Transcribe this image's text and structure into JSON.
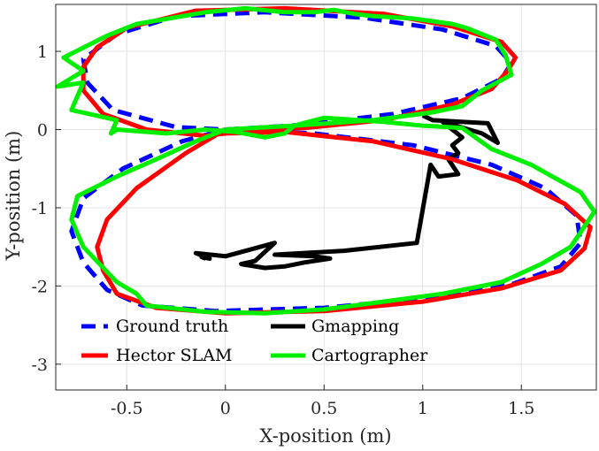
{
  "chart_data": {
    "type": "line",
    "title": "",
    "xlabel": "X-position (m)",
    "ylabel": "Y-position (m)",
    "xlim": [
      -0.86,
      1.88
    ],
    "ylim": [
      -3.33,
      1.6
    ],
    "xticks": [
      -0.5,
      0,
      0.5,
      1,
      1.5
    ],
    "xtick_labels": [
      "-0.5",
      "0",
      "0.5",
      "1",
      "1.5"
    ],
    "yticks": [
      -3,
      -2,
      -1,
      0,
      1
    ],
    "ytick_labels": [
      "-3",
      "-2",
      "-1",
      "0",
      "1"
    ],
    "grid": true,
    "legend_position": "bottom-left",
    "series": [
      {
        "name": "Ground truth",
        "color": "#0000ff",
        "style": "dashed",
        "points": [
          [
            0.0,
            0.0
          ],
          [
            0.4,
            0.06
          ],
          [
            0.85,
            0.2
          ],
          [
            1.2,
            0.4
          ],
          [
            1.4,
            0.65
          ],
          [
            1.45,
            0.85
          ],
          [
            1.37,
            1.07
          ],
          [
            1.1,
            1.28
          ],
          [
            0.7,
            1.43
          ],
          [
            0.2,
            1.5
          ],
          [
            -0.25,
            1.45
          ],
          [
            -0.55,
            1.22
          ],
          [
            -0.72,
            0.9
          ],
          [
            -0.7,
            0.6
          ],
          [
            -0.57,
            0.25
          ],
          [
            -0.25,
            0.03
          ],
          [
            0.0,
            0.0
          ],
          [
            0.45,
            -0.05
          ],
          [
            0.95,
            -0.2
          ],
          [
            1.35,
            -0.45
          ],
          [
            1.62,
            -0.75
          ],
          [
            1.78,
            -1.1
          ],
          [
            1.8,
            -1.45
          ],
          [
            1.7,
            -1.75
          ],
          [
            1.45,
            -1.98
          ],
          [
            1.05,
            -2.15
          ],
          [
            0.5,
            -2.28
          ],
          [
            -0.05,
            -2.32
          ],
          [
            -0.42,
            -2.25
          ],
          [
            -0.6,
            -2.05
          ],
          [
            -0.72,
            -1.7
          ],
          [
            -0.78,
            -1.3
          ],
          [
            -0.72,
            -0.88
          ],
          [
            -0.52,
            -0.5
          ],
          [
            -0.22,
            -0.15
          ],
          [
            0.0,
            0.0
          ]
        ]
      },
      {
        "name": "Gmapping",
        "color": "#000000",
        "style": "solid",
        "points": [
          [
            1.0,
            0.18
          ],
          [
            1.05,
            0.12
          ],
          [
            1.33,
            0.08
          ],
          [
            1.38,
            -0.17
          ],
          [
            1.3,
            -0.05
          ],
          [
            1.1,
            0.1
          ],
          [
            1.2,
            -0.1
          ],
          [
            1.15,
            -0.2
          ],
          [
            1.18,
            -0.3
          ],
          [
            1.13,
            -0.38
          ],
          [
            1.18,
            -0.57
          ],
          [
            1.08,
            -0.6
          ],
          [
            1.04,
            -0.45
          ],
          [
            0.97,
            -1.45
          ],
          [
            0.6,
            -1.55
          ],
          [
            0.25,
            -1.6
          ],
          [
            0.45,
            -1.62
          ],
          [
            0.53,
            -1.65
          ],
          [
            0.4,
            -1.7
          ],
          [
            0.3,
            -1.75
          ],
          [
            0.2,
            -1.77
          ],
          [
            0.08,
            -1.72
          ],
          [
            0.15,
            -1.68
          ],
          [
            0.25,
            -1.45
          ],
          [
            0.0,
            -1.62
          ],
          [
            -0.15,
            -1.58
          ],
          [
            -0.08,
            -1.65
          ],
          [
            -0.12,
            -1.63
          ],
          [
            -0.1,
            -1.65
          ]
        ]
      },
      {
        "name": "Hector SLAM",
        "color": "#ff0000",
        "style": "solid",
        "points": [
          [
            0.0,
            0.0
          ],
          [
            0.4,
            0.02
          ],
          [
            0.8,
            0.12
          ],
          [
            1.15,
            0.32
          ],
          [
            1.35,
            0.52
          ],
          [
            1.43,
            0.75
          ],
          [
            1.47,
            0.92
          ],
          [
            1.4,
            1.12
          ],
          [
            1.15,
            1.32
          ],
          [
            0.8,
            1.48
          ],
          [
            0.3,
            1.55
          ],
          [
            -0.15,
            1.52
          ],
          [
            -0.5,
            1.3
          ],
          [
            -0.65,
            1.05
          ],
          [
            -0.72,
            0.8
          ],
          [
            -0.72,
            0.5
          ],
          [
            -0.62,
            0.2
          ],
          [
            -0.4,
            0.0
          ],
          [
            -0.1,
            -0.08
          ],
          [
            0.0,
            -0.05
          ],
          [
            0.3,
            -0.03
          ],
          [
            0.75,
            -0.15
          ],
          [
            1.15,
            -0.38
          ],
          [
            1.48,
            -0.65
          ],
          [
            1.72,
            -0.95
          ],
          [
            1.85,
            -1.25
          ],
          [
            1.82,
            -1.52
          ],
          [
            1.7,
            -1.8
          ],
          [
            1.4,
            -2.03
          ],
          [
            1.0,
            -2.2
          ],
          [
            0.5,
            -2.32
          ],
          [
            0.0,
            -2.35
          ],
          [
            -0.35,
            -2.28
          ],
          [
            -0.55,
            -2.1
          ],
          [
            -0.62,
            -1.8
          ],
          [
            -0.65,
            -1.5
          ],
          [
            -0.6,
            -1.15
          ],
          [
            -0.45,
            -0.75
          ],
          [
            -0.2,
            -0.3
          ],
          [
            0.0,
            0.0
          ]
        ]
      },
      {
        "name": "Cartographer",
        "color": "#00ee00",
        "style": "solid",
        "points": [
          [
            0.0,
            0.0
          ],
          [
            0.35,
            0.05
          ],
          [
            0.75,
            0.12
          ],
          [
            1.05,
            0.22
          ],
          [
            1.2,
            0.3
          ],
          [
            1.3,
            0.5
          ],
          [
            1.45,
            0.7
          ],
          [
            1.42,
            0.95
          ],
          [
            1.37,
            1.15
          ],
          [
            1.22,
            1.3
          ],
          [
            1.15,
            1.35
          ],
          [
            0.95,
            1.42
          ],
          [
            0.75,
            1.45
          ],
          [
            0.65,
            1.48
          ],
          [
            0.55,
            1.53
          ],
          [
            0.45,
            1.5
          ],
          [
            0.3,
            1.5
          ],
          [
            0.1,
            1.55
          ],
          [
            -0.1,
            1.5
          ],
          [
            -0.45,
            1.35
          ],
          [
            -0.6,
            1.2
          ],
          [
            -0.82,
            0.92
          ],
          [
            -0.72,
            0.75
          ],
          [
            -0.85,
            0.55
          ],
          [
            -0.72,
            0.6
          ],
          [
            -0.78,
            0.25
          ],
          [
            -0.55,
            0.12
          ],
          [
            -0.58,
            -0.05
          ],
          [
            -0.55,
            0.0
          ],
          [
            -0.3,
            -0.05
          ],
          [
            -0.1,
            0.0
          ],
          [
            0.05,
            -0.03
          ],
          [
            0.2,
            -0.1
          ],
          [
            0.3,
            -0.05
          ],
          [
            0.35,
            0.05
          ],
          [
            0.5,
            0.15
          ],
          [
            0.8,
            0.1
          ],
          [
            1.0,
            0.05
          ],
          [
            1.2,
            0.02
          ],
          [
            1.35,
            -0.25
          ],
          [
            1.55,
            -0.45
          ],
          [
            1.8,
            -0.8
          ],
          [
            1.87,
            -1.05
          ],
          [
            1.75,
            -1.5
          ],
          [
            1.6,
            -1.72
          ],
          [
            1.4,
            -1.95
          ],
          [
            1.1,
            -2.1
          ],
          [
            0.8,
            -2.2
          ],
          [
            0.5,
            -2.3
          ],
          [
            0.2,
            -2.35
          ],
          [
            -0.1,
            -2.33
          ],
          [
            -0.4,
            -2.25
          ],
          [
            -0.45,
            -2.1
          ],
          [
            -0.55,
            -1.95
          ],
          [
            -0.72,
            -1.5
          ],
          [
            -0.78,
            -1.15
          ],
          [
            -0.75,
            -0.85
          ],
          [
            -0.55,
            -0.6
          ],
          [
            -0.35,
            -0.38
          ],
          [
            -0.15,
            -0.15
          ],
          [
            0.0,
            0.0
          ]
        ]
      }
    ]
  }
}
